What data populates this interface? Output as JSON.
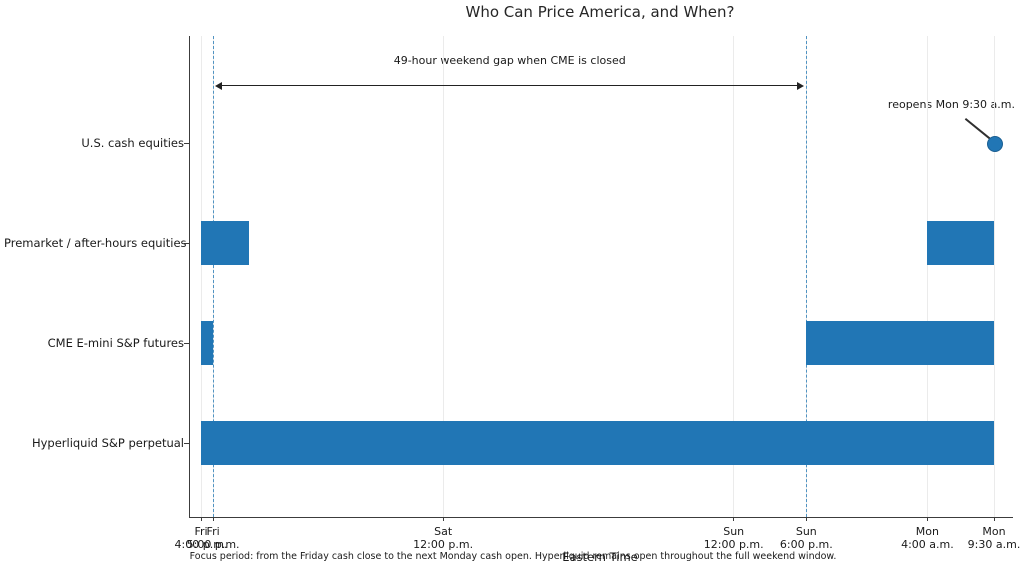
{
  "chart_data": {
    "type": "bar",
    "subtype": "horizontal-timeline",
    "title": "Who Can Price America, and When?",
    "xlabel": "Eastern Time",
    "caption": "Focus period: from the Friday cash close to the next Monday cash open. Hyperliquid remains open throughout the full weekend window.",
    "x_axis": {
      "unit": "hours since Friday 4:00 p.m. Eastern Time",
      "range": [
        0,
        65.5
      ],
      "grid": true,
      "ticks": [
        {
          "hour": 0,
          "label_line1": "Fri",
          "label_line2": "4:00 p.m."
        },
        {
          "hour": 1,
          "label_line1": "Fri",
          "label_line2": "5:00 p.m."
        },
        {
          "hour": 20,
          "label_line1": "Sat",
          "label_line2": "12:00 p.m."
        },
        {
          "hour": 44,
          "label_line1": "Sun",
          "label_line2": "12:00 p.m."
        },
        {
          "hour": 50,
          "label_line1": "Sun",
          "label_line2": "6:00 p.m."
        },
        {
          "hour": 60,
          "label_line1": "Mon",
          "label_line2": "4:00 a.m."
        },
        {
          "hour": 65.5,
          "label_line1": "Mon",
          "label_line2": "9:30 a.m."
        }
      ]
    },
    "rows": [
      {
        "label": "U.S. cash equities",
        "segments": [],
        "marker_hour": 65.5
      },
      {
        "label": "Premarket / after-hours equities",
        "segments": [
          {
            "start": 0,
            "end": 4
          },
          {
            "start": 60,
            "end": 65.5
          }
        ]
      },
      {
        "label": "CME E-mini S&P futures",
        "segments": [
          {
            "start": 0,
            "end": 1
          },
          {
            "start": 50,
            "end": 65.5
          }
        ]
      },
      {
        "label": "Hyperliquid S&P perpetual",
        "segments": [
          {
            "start": 0,
            "end": 65.5
          }
        ]
      }
    ],
    "dashed_guides_hours": [
      1,
      50
    ],
    "annotations": {
      "gap_arrow": {
        "text": "49-hour weekend gap when CME is closed",
        "from_hour": 1,
        "to_hour": 50
      },
      "reopen": {
        "text": "reopens Mon 9:30 a.m.",
        "row": "U.S. cash equities",
        "hour": 65.5
      }
    },
    "colors": {
      "bar": "#2176b5",
      "marker": "#2176b5",
      "dashed_guide": "#3584bc",
      "gridline": "#ebebeb",
      "spine": "#3c3c3c",
      "arrow": "#222222",
      "text": "#1a1a1a"
    }
  }
}
